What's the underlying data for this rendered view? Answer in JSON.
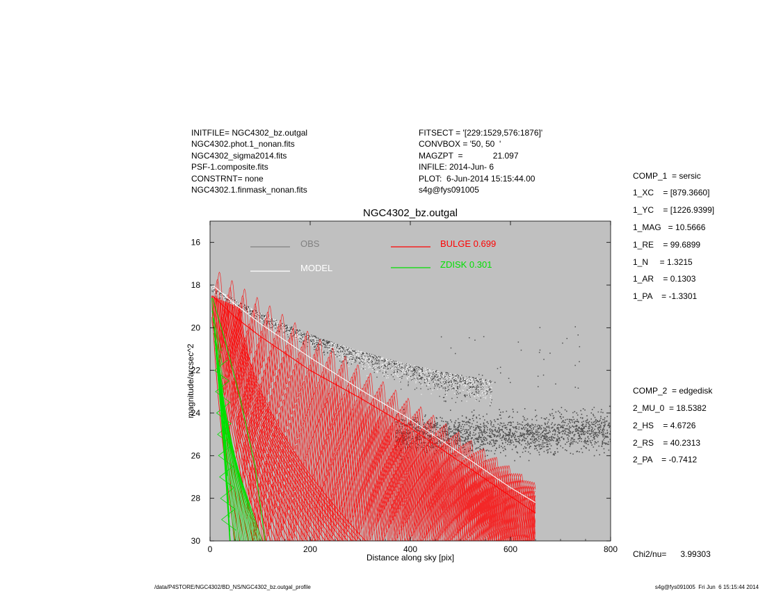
{
  "header_left": [
    "INITFILE= NGC4302_bz.outgal",
    "NGC4302.phot.1_nonan.fits",
    "NGC4302_sigma2014.fits",
    "PSF-1.composite.fits",
    "CONSTRNT= none",
    "NGC4302.1.finmask_nonan.fits"
  ],
  "header_mid": [
    "FITSECT = '[229:1529,576:1876]'",
    "CONVBOX = '50, 50  '",
    "MAGZPT  =             21.097",
    "INFILE: 2014-Jun- 6",
    "PLOT:  6-Jun-2014 15:15:44.00",
    "s4g@fys091005"
  ],
  "params_comp1": [
    "COMP_1  = sersic",
    "1_XC    = [879.3660]",
    "1_YC    = [1226.9399]",
    "1_MAG   = 10.5666",
    "1_RE    = 99.6899",
    "1_N     = 1.3215",
    "1_AR    = 0.1303",
    "1_PA    = -1.3301"
  ],
  "params_comp2": [
    "COMP_2  = edgedisk",
    "2_MU_0  = 18.5382",
    "2_HS    = 4.6726",
    "2_RS    = 40.2313",
    "2_PA    = -0.7412"
  ],
  "chi2": "Chi2/nu=      3.99303",
  "footer_left": "/data/P4STORE/NGC4302/BD_NS/NGC4302_bz.outgal_profile",
  "footer_right": "s4g@fys091005  Fri Jun  6 15:15:44 2014",
  "colors": {
    "plot_bg": "#c0c0c0",
    "obs": "#808080",
    "model": "#ffffff",
    "bulge": "#ff0000",
    "zdisk": "#00e000",
    "points": "#505050"
  },
  "chart_data": {
    "type": "scatter",
    "title": "NGC4302_bz.outgal",
    "xlabel": "Distance along sky [pix]",
    "ylabel": "magnitude/arcsec^2",
    "xlim": [
      0,
      800
    ],
    "ylim": [
      30,
      15
    ],
    "y_inverted": true,
    "xticks": [
      0,
      200,
      400,
      600,
      800
    ],
    "yticks": [
      16,
      18,
      20,
      22,
      24,
      26,
      28,
      30
    ],
    "grid": false,
    "legend": [
      {
        "label": "OBS",
        "color": "#808080"
      },
      {
        "label": "MODEL",
        "color": "#ffffff"
      },
      {
        "label": "BULGE  0.699",
        "color": "#ff0000"
      },
      {
        "label": "ZDISK  0.301",
        "color": "#00e000"
      }
    ],
    "series": [
      {
        "name": "OBS",
        "x": [
          5,
          50,
          100,
          150,
          200,
          300,
          400,
          500,
          600,
          700,
          800
        ],
        "y": [
          18.0,
          18.6,
          19.4,
          20.2,
          21.0,
          22.5,
          23.9,
          25.0,
          25.5,
          24.9,
          25.3
        ]
      },
      {
        "name": "MODEL",
        "x": [
          5,
          50,
          100,
          150,
          200,
          300,
          400,
          500,
          600,
          650
        ],
        "y": [
          18.0,
          18.9,
          19.8,
          20.6,
          21.4,
          22.9,
          24.3,
          25.9,
          27.5,
          28.2
        ]
      },
      {
        "name": "BULGE  0.699",
        "x": [
          5,
          50,
          100,
          150,
          200,
          300,
          400,
          500,
          600,
          650
        ],
        "y": [
          18.5,
          19.5,
          20.4,
          21.2,
          22.0,
          23.3,
          24.7,
          26.3,
          27.9,
          28.7
        ]
      },
      {
        "name": "ZDISK  0.301",
        "x": [
          5,
          30,
          60,
          90,
          110
        ],
        "y": [
          18.6,
          20.6,
          23.3,
          26.5,
          30.0
        ]
      }
    ]
  }
}
